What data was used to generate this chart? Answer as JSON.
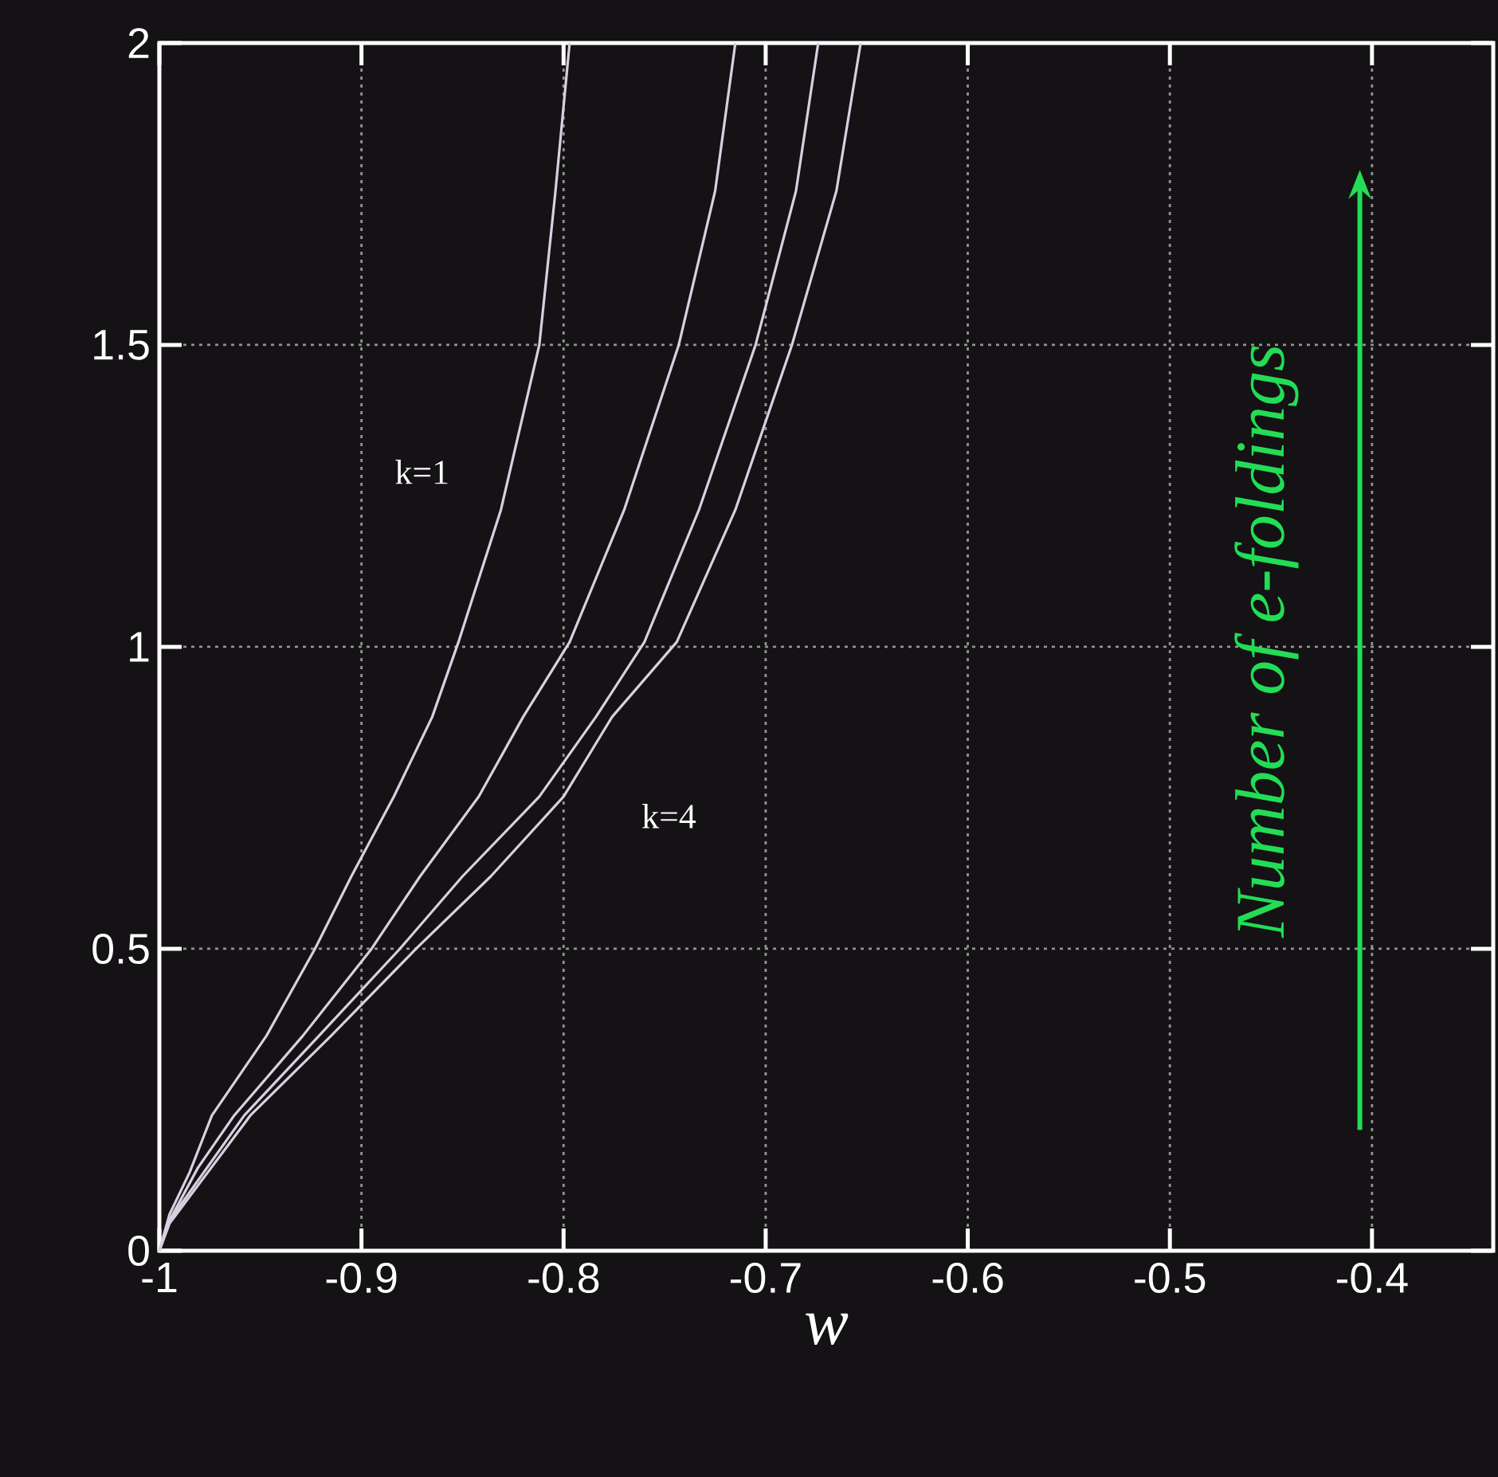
{
  "chart_data": {
    "type": "line",
    "xlabel": "w",
    "xlim": [
      -1,
      -0.34
    ],
    "ylim": [
      0,
      2
    ],
    "xticks": [
      -1,
      -0.9,
      -0.8,
      -0.7,
      -0.6,
      -0.5,
      -0.4
    ],
    "yticks": [
      0,
      0.5,
      1,
      1.5,
      2
    ],
    "grid": true,
    "marker": "none",
    "line_style": "solid",
    "series": [
      {
        "color": "#d8d0e0",
        "x": [
          -1,
          -0.995,
          -0.985,
          -0.974,
          -0.947,
          -0.923,
          -0.905,
          -0.884,
          -0.865,
          -0.852,
          -0.831,
          -0.812,
          -0.804,
          -0.797
        ],
        "values": [
          0,
          0.06,
          0.13,
          0.224,
          0.356,
          0.5,
          0.62,
          0.752,
          0.884,
          1.008,
          1.227,
          1.5,
          1.755,
          2
        ]
      },
      {
        "color": "#d8d0e0",
        "x": [
          -1,
          -0.995,
          -0.981,
          -0.963,
          -0.929,
          -0.895,
          -0.871,
          -0.842,
          -0.82,
          -0.797,
          -0.77,
          -0.743,
          -0.725,
          -0.715
        ],
        "values": [
          0,
          0.05,
          0.137,
          0.224,
          0.356,
          0.5,
          0.62,
          0.752,
          0.884,
          1.008,
          1.227,
          1.5,
          1.755,
          2
        ]
      },
      {
        "color": "#d8d0e0",
        "x": [
          -1,
          -0.995,
          -0.958,
          -0.921,
          -0.881,
          -0.85,
          -0.812,
          -0.784,
          -0.76,
          -0.733,
          -0.705,
          -0.685,
          -0.674
        ],
        "values": [
          0,
          0.05,
          0.224,
          0.356,
          0.5,
          0.62,
          0.752,
          0.884,
          1.008,
          1.227,
          1.5,
          1.755,
          2
        ]
      },
      {
        "color": "#d8d0e0",
        "x": [
          -1,
          -0.995,
          -0.955,
          -0.915,
          -0.873,
          -0.836,
          -0.8,
          -0.776,
          -0.744,
          -0.715,
          -0.687,
          -0.665,
          -0.653
        ],
        "values": [
          0,
          0.045,
          0.224,
          0.356,
          0.5,
          0.62,
          0.752,
          0.884,
          1.008,
          1.227,
          1.5,
          1.755,
          2
        ]
      }
    ],
    "annotations": [
      "k=1",
      "k=4",
      "Number of e-foldings"
    ]
  }
}
